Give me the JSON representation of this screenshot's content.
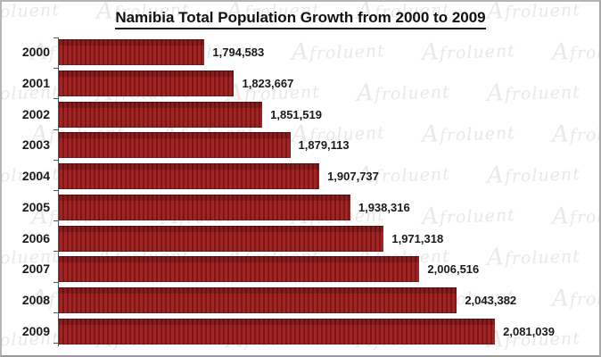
{
  "title": "Namibia Total Population Growth from 2000 to 2009",
  "watermark": {
    "text": "Afroluent",
    "color": "#e9e9e8"
  },
  "colors": {
    "bar_fill": "#9c1d1d",
    "bar_stripe_dark": "#731010",
    "label_text": "#1a1a1a",
    "axis_line": "#555555",
    "frame_border": "#b5b5b5",
    "background": "#ffffff"
  },
  "chart_data": {
    "type": "bar",
    "orientation": "horizontal",
    "title": "Namibia Total Population Growth from 2000 to 2009",
    "categories": [
      "2000",
      "2001",
      "2002",
      "2003",
      "2004",
      "2005",
      "2006",
      "2007",
      "2008",
      "2009"
    ],
    "values": [
      1794583,
      1823667,
      1851519,
      1879113,
      1907737,
      1938316,
      1971318,
      2006516,
      2043382,
      2081039
    ],
    "value_labels": [
      "1,794,583",
      "1,823,667",
      "1,851,519",
      "1,879,113",
      "1,907,737",
      "1,938,316",
      "1,971,318",
      "2,006,516",
      "2,043,382",
      "2,081,039"
    ],
    "xlabel": "",
    "ylabel": "",
    "xlim": [
      1650000,
      2175000
    ],
    "grid": false,
    "legend": false,
    "value_label_position": "outside-end",
    "bar_color": "#9c1d1d"
  }
}
